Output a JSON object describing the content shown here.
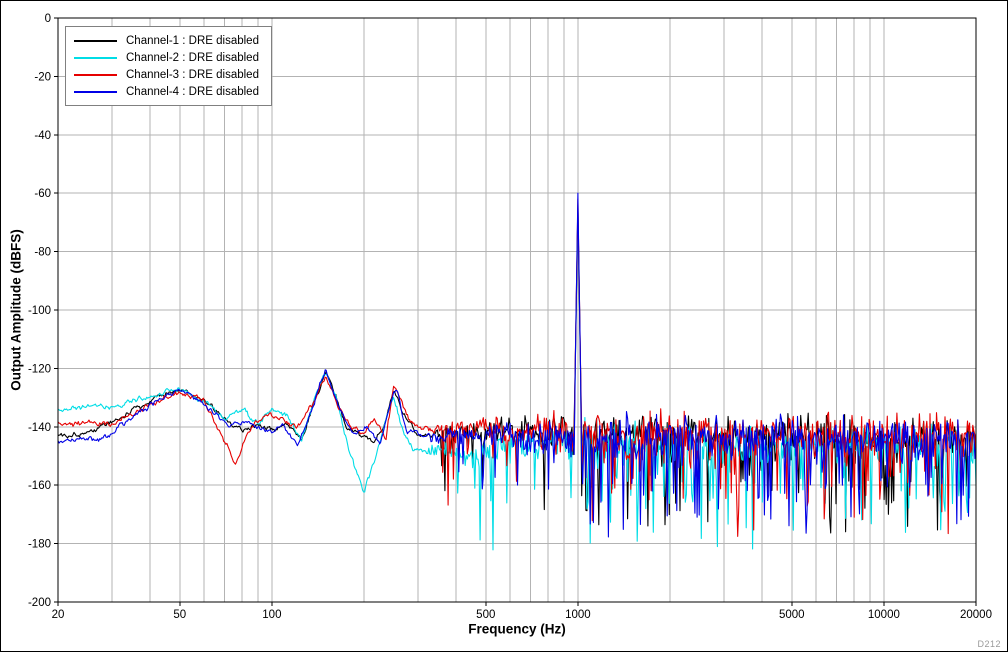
{
  "figure": {
    "watermark": "D212",
    "background": "#ffffff"
  },
  "chart_data": {
    "type": "line",
    "title": "",
    "xlabel": "Frequency (Hz)",
    "ylabel": "Output Amplitude (dBFS)",
    "x_scale": "log",
    "xlim": [
      20,
      20000
    ],
    "ylim": [
      -200,
      0
    ],
    "grid": true,
    "grid_color": "#b3b3b3",
    "x_ticks": [
      {
        "v": 20,
        "label": "20"
      },
      {
        "v": 50,
        "label": "50"
      },
      {
        "v": 100,
        "label": "100"
      },
      {
        "v": 500,
        "label": "500"
      },
      {
        "v": 1000,
        "label": "1000"
      },
      {
        "v": 5000,
        "label": "5000"
      },
      {
        "v": 10000,
        "label": "10000"
      },
      {
        "v": 20000,
        "label": "20000"
      }
    ],
    "y_ticks": [
      0,
      -20,
      -40,
      -60,
      -80,
      -100,
      -120,
      -140,
      -160,
      -180,
      -200
    ],
    "legend": {
      "position": "top-left"
    },
    "tone": {
      "frequency_hz": 1000
    },
    "noise_floor_dbfs": -143,
    "series": [
      {
        "label": "Channel-1 : DRE disabled",
        "color": "#000000",
        "tone_peak_dbfs": -65,
        "seed": 101,
        "noise": {
          "amp_low": 2.2,
          "amp_high": 8.5,
          "transition_hz": 320,
          "deep_prob": 0.028,
          "deep_extra_db": 26
        },
        "envelope": [
          [
            20,
            -143
          ],
          [
            25,
            -142
          ],
          [
            32,
            -137
          ],
          [
            40,
            -131
          ],
          [
            50,
            -127
          ],
          [
            58,
            -130
          ],
          [
            70,
            -137
          ],
          [
            80,
            -141
          ],
          [
            90,
            -139
          ],
          [
            100,
            -141
          ],
          [
            112,
            -139
          ],
          [
            125,
            -144
          ],
          [
            138,
            -131
          ],
          [
            150,
            -121
          ],
          [
            162,
            -129
          ],
          [
            175,
            -140
          ],
          [
            195,
            -143
          ],
          [
            215,
            -145
          ],
          [
            232,
            -140
          ],
          [
            250,
            -128
          ],
          [
            268,
            -135
          ],
          [
            300,
            -143
          ],
          [
            400,
            -142
          ],
          [
            600,
            -141
          ],
          [
            900,
            -142
          ],
          [
            1300,
            -142
          ],
          [
            3000,
            -143
          ],
          [
            20000,
            -144
          ]
        ]
      },
      {
        "label": "Channel-2 : DRE disabled",
        "color": "#00dde6",
        "tone_peak_dbfs": -64,
        "seed": 202,
        "noise": {
          "amp_low": 2.2,
          "amp_high": 8.5,
          "transition_hz": 320,
          "deep_prob": 0.032,
          "deep_extra_db": 26
        },
        "envelope": [
          [
            20,
            -134
          ],
          [
            30,
            -133
          ],
          [
            40,
            -130
          ],
          [
            50,
            -127
          ],
          [
            60,
            -131
          ],
          [
            70,
            -137
          ],
          [
            80,
            -134
          ],
          [
            90,
            -139
          ],
          [
            100,
            -134
          ],
          [
            112,
            -136
          ],
          [
            125,
            -145
          ],
          [
            138,
            -130
          ],
          [
            150,
            -121
          ],
          [
            163,
            -131
          ],
          [
            178,
            -148
          ],
          [
            200,
            -162
          ],
          [
            220,
            -149
          ],
          [
            235,
            -138
          ],
          [
            250,
            -129
          ],
          [
            265,
            -140
          ],
          [
            290,
            -148
          ],
          [
            360,
            -148
          ],
          [
            460,
            -151
          ],
          [
            600,
            -146
          ],
          [
            900,
            -144
          ],
          [
            1300,
            -145
          ],
          [
            3000,
            -146
          ],
          [
            20000,
            -146
          ]
        ]
      },
      {
        "label": "Channel-3 : DRE disabled",
        "color": "#e60000",
        "tone_peak_dbfs": -62,
        "seed": 303,
        "noise": {
          "amp_low": 2.2,
          "amp_high": 8.5,
          "transition_hz": 320,
          "deep_prob": 0.028,
          "deep_extra_db": 26
        },
        "envelope": [
          [
            20,
            -139
          ],
          [
            30,
            -139
          ],
          [
            40,
            -133
          ],
          [
            50,
            -128
          ],
          [
            60,
            -131
          ],
          [
            68,
            -142
          ],
          [
            76,
            -152
          ],
          [
            86,
            -140
          ],
          [
            96,
            -136
          ],
          [
            106,
            -137
          ],
          [
            120,
            -141
          ],
          [
            138,
            -131
          ],
          [
            150,
            -122
          ],
          [
            164,
            -133
          ],
          [
            180,
            -140
          ],
          [
            200,
            -142
          ],
          [
            216,
            -137
          ],
          [
            236,
            -144
          ],
          [
            250,
            -126
          ],
          [
            262,
            -130
          ],
          [
            285,
            -139
          ],
          [
            330,
            -141
          ],
          [
            420,
            -140
          ],
          [
            600,
            -142
          ],
          [
            900,
            -141
          ],
          [
            1300,
            -142
          ],
          [
            3000,
            -142
          ],
          [
            20000,
            -143
          ]
        ]
      },
      {
        "label": "Channel-4 : DRE disabled",
        "color": "#0000e6",
        "tone_peak_dbfs": -60,
        "seed": 404,
        "noise": {
          "amp_low": 2.2,
          "amp_high": 8.5,
          "transition_hz": 320,
          "deep_prob": 0.028,
          "deep_extra_db": 26
        },
        "envelope": [
          [
            20,
            -145
          ],
          [
            28,
            -144
          ],
          [
            36,
            -136
          ],
          [
            50,
            -127
          ],
          [
            60,
            -132
          ],
          [
            72,
            -140
          ],
          [
            84,
            -138
          ],
          [
            96,
            -142
          ],
          [
            108,
            -140
          ],
          [
            122,
            -146
          ],
          [
            138,
            -131
          ],
          [
            150,
            -120
          ],
          [
            166,
            -134
          ],
          [
            186,
            -143
          ],
          [
            206,
            -140
          ],
          [
            226,
            -146
          ],
          [
            244,
            -131
          ],
          [
            255,
            -127
          ],
          [
            276,
            -141
          ],
          [
            330,
            -144
          ],
          [
            420,
            -143
          ],
          [
            600,
            -143
          ],
          [
            900,
            -144
          ],
          [
            1300,
            -143
          ],
          [
            3000,
            -143
          ],
          [
            20000,
            -144
          ]
        ]
      }
    ]
  }
}
